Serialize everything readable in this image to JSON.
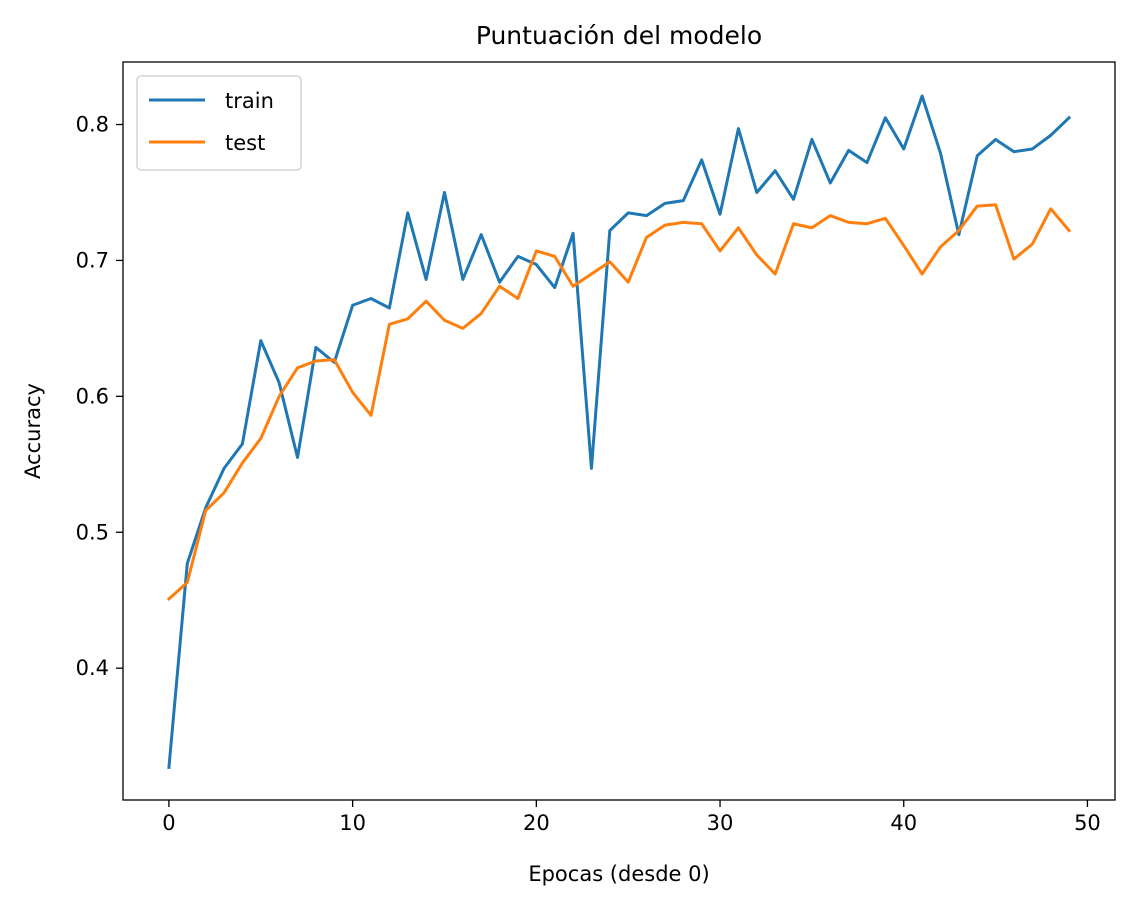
{
  "chart_data": {
    "type": "line",
    "title": "Puntuación del modelo",
    "xlabel": "Epocas (desde 0)",
    "ylabel": "Accuracy",
    "xlim": [
      -2.5,
      51.5
    ],
    "ylim": [
      0.303,
      0.846
    ],
    "xticks": [
      0,
      10,
      20,
      30,
      40,
      50
    ],
    "yticks": [
      0.4,
      0.5,
      0.6,
      0.7,
      0.8
    ],
    "grid": false,
    "legend_position": "upper left",
    "x": [
      0,
      1,
      2,
      3,
      4,
      5,
      6,
      7,
      8,
      9,
      10,
      11,
      12,
      13,
      14,
      15,
      16,
      17,
      18,
      19,
      20,
      21,
      22,
      23,
      24,
      25,
      26,
      27,
      28,
      29,
      30,
      31,
      32,
      33,
      34,
      35,
      36,
      37,
      38,
      39,
      40,
      41,
      42,
      43,
      44,
      45,
      46,
      47,
      48,
      49
    ],
    "series": [
      {
        "name": "train",
        "color": "#1f77b4",
        "values": [
          0.327,
          0.477,
          0.518,
          0.547,
          0.565,
          0.641,
          0.61,
          0.555,
          0.636,
          0.625,
          0.667,
          0.672,
          0.665,
          0.735,
          0.686,
          0.75,
          0.686,
          0.719,
          0.684,
          0.703,
          0.697,
          0.68,
          0.72,
          0.547,
          0.722,
          0.735,
          0.733,
          0.742,
          0.744,
          0.774,
          0.734,
          0.797,
          0.75,
          0.766,
          0.745,
          0.789,
          0.757,
          0.781,
          0.772,
          0.805,
          0.782,
          0.821,
          0.779,
          0.719,
          0.777,
          0.789,
          0.78,
          0.782,
          0.792,
          0.805
        ]
      },
      {
        "name": "test",
        "color": "#ff7f0e",
        "values": [
          0.451,
          0.463,
          0.516,
          0.529,
          0.551,
          0.569,
          0.6,
          0.621,
          0.626,
          0.627,
          0.603,
          0.586,
          0.653,
          0.657,
          0.67,
          0.656,
          0.65,
          0.661,
          0.681,
          0.672,
          0.707,
          0.703,
          0.681,
          0.69,
          0.699,
          0.684,
          0.717,
          0.726,
          0.728,
          0.727,
          0.707,
          0.724,
          0.704,
          0.69,
          0.727,
          0.724,
          0.733,
          0.728,
          0.727,
          0.731,
          0.711,
          0.69,
          0.71,
          0.722,
          0.74,
          0.741,
          0.701,
          0.712,
          0.738,
          0.722
        ]
      }
    ]
  }
}
